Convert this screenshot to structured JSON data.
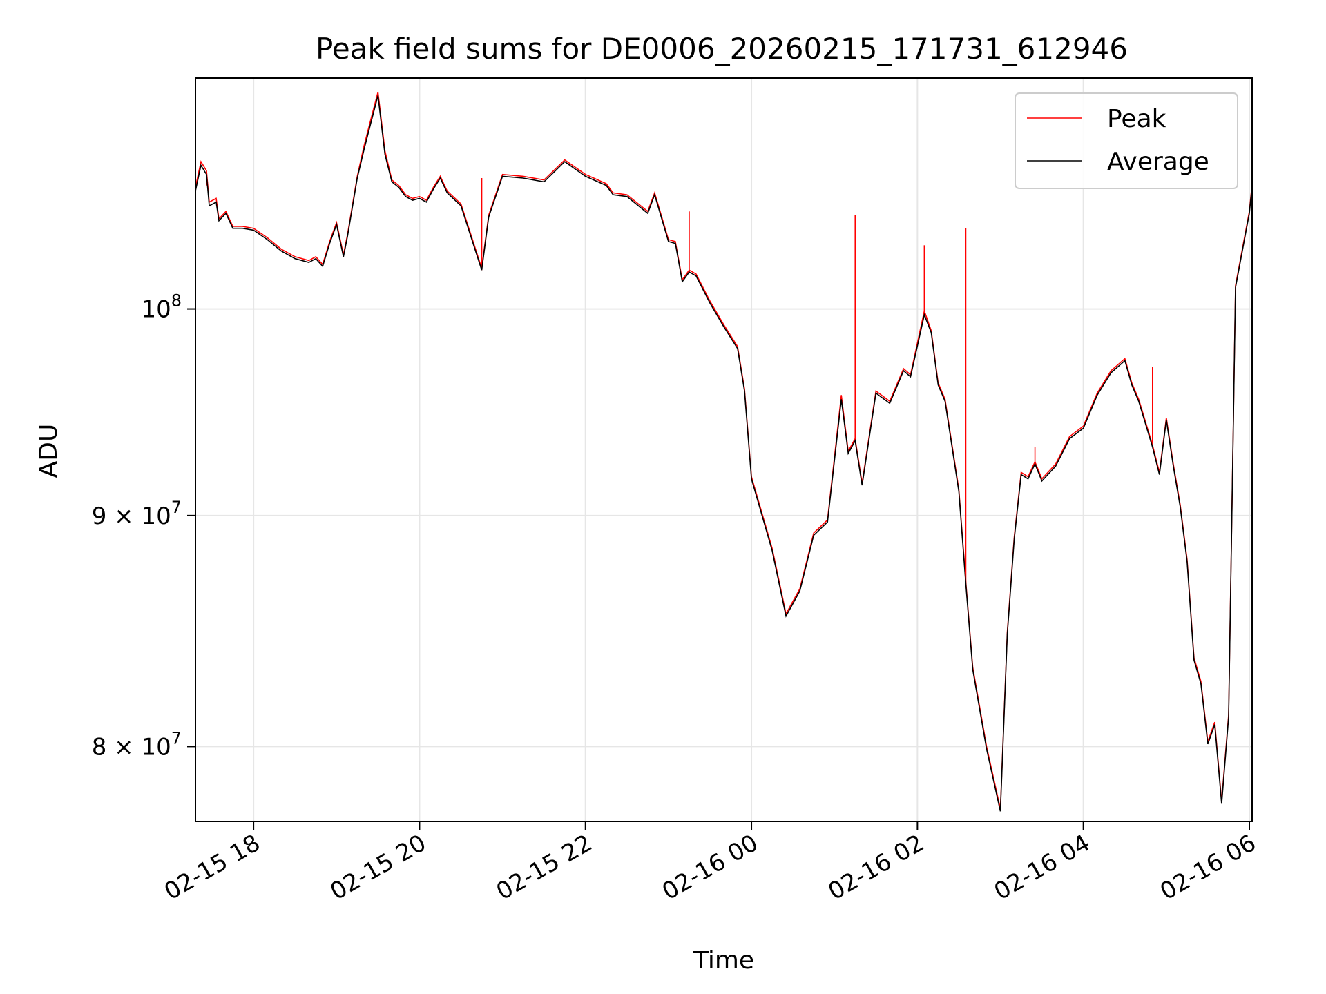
{
  "chart_data": {
    "type": "line",
    "title": "Peak field sums for DE0006_20260215_171731_612946",
    "xlabel": "Time",
    "ylabel": "ADU",
    "yscale": "log",
    "ylim": [
      77000000,
      112500000
    ],
    "xlim": [
      "2026-02-15 17:18",
      "2026-02-16 06:02"
    ],
    "grid": true,
    "legend": "upper right",
    "x_ticks": [
      {
        "value": "2026-02-15 18:00",
        "label": "02-15 18"
      },
      {
        "value": "2026-02-15 20:00",
        "label": "02-15 20"
      },
      {
        "value": "2026-02-15 22:00",
        "label": "02-15 22"
      },
      {
        "value": "2026-02-16 00:00",
        "label": "02-16 00"
      },
      {
        "value": "2026-02-16 02:00",
        "label": "02-16 02"
      },
      {
        "value": "2026-02-16 04:00",
        "label": "02-16 04"
      },
      {
        "value": "2026-02-16 06:00",
        "label": "02-16 06"
      }
    ],
    "y_ticks": [
      {
        "value": 80000000,
        "label": "8×10⁷",
        "mantissa": "8 × 10",
        "exp": "7"
      },
      {
        "value": 90000000,
        "label": "9×10⁷",
        "mantissa": "9 × 10",
        "exp": "7"
      },
      {
        "value": 100000000,
        "label": "10⁸",
        "mantissa": "10",
        "exp": "8"
      }
    ],
    "series": [
      {
        "name": "Peak",
        "color": "#ff0000",
        "x": [
          "2026-02-15 17:18",
          "2026-02-15 17:22",
          "2026-02-15 17:26",
          "2026-02-15 17:28",
          "2026-02-15 17:33",
          "2026-02-15 17:35",
          "2026-02-15 17:40",
          "2026-02-15 17:45",
          "2026-02-15 17:52",
          "2026-02-15 18:00",
          "2026-02-15 18:10",
          "2026-02-15 18:20",
          "2026-02-15 18:30",
          "2026-02-15 18:40",
          "2026-02-15 18:45",
          "2026-02-15 18:50",
          "2026-02-15 18:55",
          "2026-02-15 19:00",
          "2026-02-15 19:05",
          "2026-02-15 19:08",
          "2026-02-15 19:15",
          "2026-02-15 19:20",
          "2026-02-15 19:25",
          "2026-02-15 19:30",
          "2026-02-15 19:35",
          "2026-02-15 19:40",
          "2026-02-15 19:45",
          "2026-02-15 19:50",
          "2026-02-15 19:55",
          "2026-02-15 20:00",
          "2026-02-15 20:05",
          "2026-02-15 20:10",
          "2026-02-15 20:15",
          "2026-02-15 20:20",
          "2026-02-15 20:30",
          "2026-02-15 20:45",
          "2026-02-15 20:50",
          "2026-02-15 21:00",
          "2026-02-15 21:15",
          "2026-02-15 21:30",
          "2026-02-15 21:45",
          "2026-02-15 22:00",
          "2026-02-15 22:15",
          "2026-02-15 22:20",
          "2026-02-15 22:30",
          "2026-02-15 22:45",
          "2026-02-15 22:50",
          "2026-02-15 23:00",
          "2026-02-15 23:05",
          "2026-02-15 23:10",
          "2026-02-15 23:15",
          "2026-02-15 23:20",
          "2026-02-15 23:30",
          "2026-02-15 23:40",
          "2026-02-15 23:50",
          "2026-02-15 23:55",
          "2026-02-16 00:00",
          "2026-02-16 00:15",
          "2026-02-16 00:25",
          "2026-02-16 00:35",
          "2026-02-16 00:45",
          "2026-02-16 00:55",
          "2026-02-16 01:05",
          "2026-02-16 01:10",
          "2026-02-16 01:15",
          "2026-02-16 01:20",
          "2026-02-16 01:30",
          "2026-02-16 01:40",
          "2026-02-16 01:50",
          "2026-02-16 01:55",
          "2026-02-16 02:05",
          "2026-02-16 02:10",
          "2026-02-16 02:15",
          "2026-02-16 02:20",
          "2026-02-16 02:30",
          "2026-02-16 02:35",
          "2026-02-16 02:40",
          "2026-02-16 02:50",
          "2026-02-16 03:00",
          "2026-02-16 03:05",
          "2026-02-16 03:10",
          "2026-02-16 03:15",
          "2026-02-16 03:20",
          "2026-02-16 03:25",
          "2026-02-16 03:30",
          "2026-02-16 03:40",
          "2026-02-16 03:50",
          "2026-02-16 04:00",
          "2026-02-16 04:10",
          "2026-02-16 04:20",
          "2026-02-16 04:30",
          "2026-02-16 04:35",
          "2026-02-16 04:40",
          "2026-02-16 04:50",
          "2026-02-16 04:55",
          "2026-02-16 05:00",
          "2026-02-16 05:05",
          "2026-02-16 05:10",
          "2026-02-16 05:15",
          "2026-02-16 05:20",
          "2026-02-16 05:25",
          "2026-02-16 05:30",
          "2026-02-16 05:35",
          "2026-02-16 05:40",
          "2026-02-16 05:45",
          "2026-02-16 05:50",
          "2026-02-16 06:00",
          "2026-02-16 06:02"
        ],
        "values": [
          106400000,
          107800000,
          107300000,
          105600000,
          105800000,
          104700000,
          105100000,
          104300000,
          104300000,
          104200000,
          103700000,
          103100000,
          102700000,
          102500000,
          102700000,
          102300000,
          103500000,
          104500000,
          102800000,
          103900000,
          107000000,
          108700000,
          110200000,
          111700000,
          108400000,
          106800000,
          106500000,
          106000000,
          105800000,
          105900000,
          105700000,
          106400000,
          107000000,
          106200000,
          105500000,
          102100000,
          104900000,
          107100000,
          107000000,
          106800000,
          107900000,
          107100000,
          106600000,
          106100000,
          106000000,
          105100000,
          106100000,
          103600000,
          103500000,
          101500000,
          102000000,
          101800000,
          100400000,
          99200000,
          98100000,
          96000000,
          91800000,
          88500000,
          85600000,
          86700000,
          89200000,
          89800000,
          95700000,
          93000000,
          93600000,
          91500000,
          95900000,
          95400000,
          97000000,
          96700000,
          99900000,
          98900000,
          96300000,
          95500000,
          91200000,
          87000000,
          83300000,
          80000000,
          77500000,
          84800000,
          89000000,
          92000000,
          91800000,
          92500000,
          91700000,
          92400000,
          93700000,
          94200000,
          95800000,
          96900000,
          97500000,
          96300000,
          95500000,
          93300000,
          92000000,
          94600000,
          92400000,
          90500000,
          88000000,
          83700000,
          82700000,
          80200000,
          81000000,
          77800000,
          81300000,
          101200000,
          105100000,
          106600000
        ]
      },
      {
        "name": "Average",
        "color": "#000000",
        "x": [
          "2026-02-15 17:18",
          "2026-02-15 17:22",
          "2026-02-15 17:26",
          "2026-02-15 17:28",
          "2026-02-15 17:33",
          "2026-02-15 17:35",
          "2026-02-15 17:40",
          "2026-02-15 17:45",
          "2026-02-15 17:52",
          "2026-02-15 18:00",
          "2026-02-15 18:10",
          "2026-02-15 18:20",
          "2026-02-15 18:30",
          "2026-02-15 18:40",
          "2026-02-15 18:45",
          "2026-02-15 18:50",
          "2026-02-15 18:55",
          "2026-02-15 19:00",
          "2026-02-15 19:05",
          "2026-02-15 19:08",
          "2026-02-15 19:15",
          "2026-02-15 19:20",
          "2026-02-15 19:25",
          "2026-02-15 19:30",
          "2026-02-15 19:35",
          "2026-02-15 19:40",
          "2026-02-15 19:45",
          "2026-02-15 19:50",
          "2026-02-15 19:55",
          "2026-02-15 20:00",
          "2026-02-15 20:05",
          "2026-02-15 20:10",
          "2026-02-15 20:15",
          "2026-02-15 20:20",
          "2026-02-15 20:30",
          "2026-02-15 20:45",
          "2026-02-15 20:50",
          "2026-02-15 21:00",
          "2026-02-15 21:15",
          "2026-02-15 21:30",
          "2026-02-15 21:45",
          "2026-02-15 22:00",
          "2026-02-15 22:15",
          "2026-02-15 22:20",
          "2026-02-15 22:30",
          "2026-02-15 22:45",
          "2026-02-15 22:50",
          "2026-02-15 23:00",
          "2026-02-15 23:05",
          "2026-02-15 23:10",
          "2026-02-15 23:15",
          "2026-02-15 23:20",
          "2026-02-15 23:30",
          "2026-02-15 23:40",
          "2026-02-15 23:50",
          "2026-02-15 23:55",
          "2026-02-16 00:00",
          "2026-02-16 00:15",
          "2026-02-16 00:25",
          "2026-02-16 00:35",
          "2026-02-16 00:45",
          "2026-02-16 00:55",
          "2026-02-16 01:05",
          "2026-02-16 01:10",
          "2026-02-16 01:15",
          "2026-02-16 01:20",
          "2026-02-16 01:30",
          "2026-02-16 01:40",
          "2026-02-16 01:50",
          "2026-02-16 01:55",
          "2026-02-16 02:05",
          "2026-02-16 02:10",
          "2026-02-16 02:15",
          "2026-02-16 02:20",
          "2026-02-16 02:30",
          "2026-02-16 02:35",
          "2026-02-16 02:40",
          "2026-02-16 02:50",
          "2026-02-16 03:00",
          "2026-02-16 03:05",
          "2026-02-16 03:10",
          "2026-02-16 03:15",
          "2026-02-16 03:20",
          "2026-02-16 03:25",
          "2026-02-16 03:30",
          "2026-02-16 03:40",
          "2026-02-16 03:50",
          "2026-02-16 04:00",
          "2026-02-16 04:10",
          "2026-02-16 04:20",
          "2026-02-16 04:30",
          "2026-02-16 04:35",
          "2026-02-16 04:40",
          "2026-02-16 04:50",
          "2026-02-16 04:55",
          "2026-02-16 05:00",
          "2026-02-16 05:05",
          "2026-02-16 05:10",
          "2026-02-16 05:15",
          "2026-02-16 05:20",
          "2026-02-16 05:25",
          "2026-02-16 05:30",
          "2026-02-16 05:35",
          "2026-02-16 05:40",
          "2026-02-16 05:45",
          "2026-02-16 05:50",
          "2026-02-16 06:00",
          "2026-02-16 06:02"
        ],
        "values": [
          106200000,
          107600000,
          107100000,
          105400000,
          105600000,
          104600000,
          105000000,
          104200000,
          104200000,
          104100000,
          103600000,
          103000000,
          102600000,
          102400000,
          102600000,
          102200000,
          103400000,
          104400000,
          102700000,
          103800000,
          106900000,
          108500000,
          110000000,
          111500000,
          108200000,
          106700000,
          106400000,
          105900000,
          105700000,
          105800000,
          105600000,
          106300000,
          106900000,
          106100000,
          105400000,
          102000000,
          104800000,
          107000000,
          106900000,
          106700000,
          107800000,
          107000000,
          106500000,
          106000000,
          105900000,
          105000000,
          106000000,
          103500000,
          103400000,
          101400000,
          101900000,
          101700000,
          100300000,
          99100000,
          98000000,
          95900000,
          91700000,
          88400000,
          85500000,
          86600000,
          89100000,
          89700000,
          95500000,
          92900000,
          93500000,
          91400000,
          95800000,
          95300000,
          96900000,
          96600000,
          99700000,
          98800000,
          96200000,
          95400000,
          91100000,
          86900000,
          83200000,
          79900000,
          77400000,
          84700000,
          88900000,
          91900000,
          91700000,
          92400000,
          91600000,
          92300000,
          93600000,
          94100000,
          95700000,
          96800000,
          97400000,
          96200000,
          95400000,
          93200000,
          91900000,
          94500000,
          92300000,
          90400000,
          87900000,
          83600000,
          82600000,
          80100000,
          80900000,
          77700000,
          81200000,
          101100000,
          105000000,
          106500000
        ]
      }
    ],
    "peak_spikes": [
      {
        "x": "2026-02-15 17:26",
        "value": 106500000
      },
      {
        "x": "2026-02-15 20:45",
        "value": 106900000
      },
      {
        "x": "2026-02-15 23:15",
        "value": 105100000
      },
      {
        "x": "2026-02-16 01:15",
        "value": 104900000
      },
      {
        "x": "2026-02-16 01:30",
        "value": 95800000
      },
      {
        "x": "2026-02-16 02:05",
        "value": 103300000
      },
      {
        "x": "2026-02-16 02:35",
        "value": 104200000
      },
      {
        "x": "2026-02-16 03:25",
        "value": 93200000
      },
      {
        "x": "2026-02-16 04:50",
        "value": 97100000
      }
    ]
  }
}
